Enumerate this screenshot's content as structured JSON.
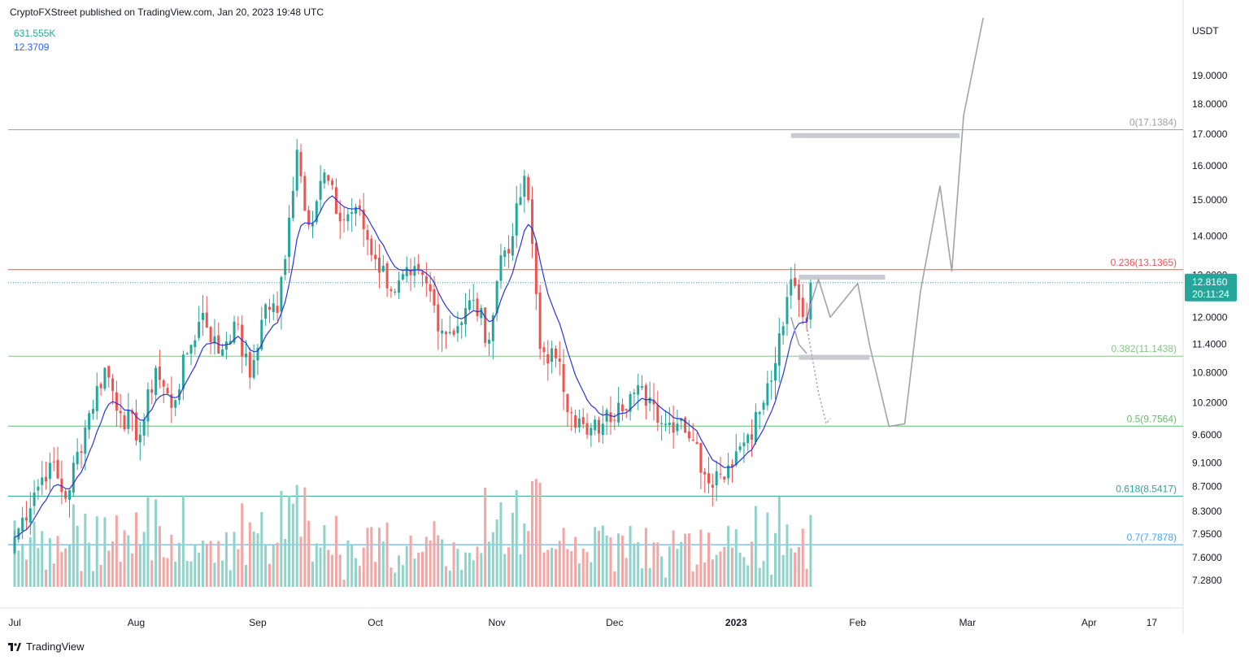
{
  "header": {
    "published": "CryptoFXStreet published on TradingView.com, Jan 20, 2023 19:48 UTC"
  },
  "legend": {
    "volume": "631.555K",
    "ma_value": "12.3709"
  },
  "footer": {
    "brand": "TradingView"
  },
  "colors": {
    "up": "#26a69a",
    "down": "#ef5350",
    "vol_up": "#8fd3ca",
    "vol_down": "#f4a6a4",
    "ma": "#2c35d4",
    "fib_0": "#9e9e9e",
    "fib_236": "#ef5350",
    "fib_382": "#81c784",
    "fib_500": "#66bb6a",
    "fib_618": "#26a69a",
    "fib_700": "#42a5f5",
    "last_price_bg": "#26a69a"
  },
  "chart_data": {
    "type": "candlestick",
    "symbol_quote": "USDT",
    "y_scale": "log",
    "ylim": [
      7.1,
      21.2
    ],
    "y_ticks": [
      "19.0000",
      "18.0000",
      "17.0000",
      "16.0000",
      "15.0000",
      "14.0000",
      "13.0000",
      "12.0000",
      "11.4000",
      "10.8000",
      "10.2000",
      "9.6000",
      "9.1000",
      "8.7000",
      "8.3000",
      "7.9500",
      "7.6000",
      "7.2800"
    ],
    "x_ticks": [
      "Jul",
      "Aug",
      "Sep",
      "Oct",
      "Nov",
      "Dec",
      "2023",
      "Feb",
      "Mar",
      "Apr",
      "17"
    ],
    "x_start": "2022-07-01",
    "x_end": "2023-04-25",
    "last_price": "12.8160",
    "countdown": "20:11:24",
    "fib_levels": [
      {
        "label": "0(17.1384)",
        "value": 17.1384,
        "level": "0"
      },
      {
        "label": "0.236(13.1365)",
        "value": 13.1365,
        "level": "0.236"
      },
      {
        "label": "0.382(11.1438)",
        "value": 11.1438,
        "level": "0.382"
      },
      {
        "label": "0.5(9.7564)",
        "value": 9.7564,
        "level": "0.5"
      },
      {
        "label": "0.618(8.5417)",
        "value": 8.5417,
        "level": "0.618"
      },
      {
        "label": "0.7(7.7878)",
        "value": 7.7878,
        "level": "0.7"
      }
    ],
    "close_anchors": [
      [
        "2022-07-01",
        7.9
      ],
      [
        "2022-07-06",
        8.6
      ],
      [
        "2022-07-10",
        9.1
      ],
      [
        "2022-07-14",
        8.5
      ],
      [
        "2022-07-20",
        10.0
      ],
      [
        "2022-07-24",
        10.9
      ],
      [
        "2022-07-28",
        10.0
      ],
      [
        "2022-08-02",
        9.6
      ],
      [
        "2022-08-06",
        10.9
      ],
      [
        "2022-08-10",
        10.1
      ],
      [
        "2022-08-14",
        11.2
      ],
      [
        "2022-08-18",
        12.1
      ],
      [
        "2022-08-22",
        11.2
      ],
      [
        "2022-08-26",
        11.9
      ],
      [
        "2022-08-30",
        10.7
      ],
      [
        "2022-09-03",
        12.3
      ],
      [
        "2022-09-06",
        12.1
      ],
      [
        "2022-09-09",
        14.5
      ],
      [
        "2022-09-11",
        16.5
      ],
      [
        "2022-09-14",
        14.3
      ],
      [
        "2022-09-18",
        15.8
      ],
      [
        "2022-09-22",
        14.4
      ],
      [
        "2022-09-26",
        14.8
      ],
      [
        "2022-10-01",
        13.4
      ],
      [
        "2022-10-06",
        12.6
      ],
      [
        "2022-10-10",
        13.0
      ],
      [
        "2022-10-14",
        12.8
      ],
      [
        "2022-10-18",
        11.7
      ],
      [
        "2022-10-22",
        11.8
      ],
      [
        "2022-10-26",
        12.4
      ],
      [
        "2022-10-30",
        11.5
      ],
      [
        "2022-11-02",
        13.5
      ],
      [
        "2022-11-05",
        14.0
      ],
      [
        "2022-11-08",
        15.7
      ],
      [
        "2022-11-10",
        13.8
      ],
      [
        "2022-11-12",
        11.3
      ],
      [
        "2022-11-16",
        11.1
      ],
      [
        "2022-11-20",
        10.0
      ],
      [
        "2022-11-24",
        9.6
      ],
      [
        "2022-11-28",
        9.8
      ],
      [
        "2022-12-02",
        10.2
      ],
      [
        "2022-12-06",
        10.4
      ],
      [
        "2022-12-10",
        10.3
      ],
      [
        "2022-12-14",
        9.8
      ],
      [
        "2022-12-18",
        9.9
      ],
      [
        "2022-12-21",
        9.5
      ],
      [
        "2022-12-24",
        8.9
      ],
      [
        "2022-12-28",
        8.9
      ],
      [
        "2023-01-01",
        9.3
      ],
      [
        "2023-01-04",
        9.6
      ],
      [
        "2023-01-08",
        10.2
      ],
      [
        "2023-01-11",
        11.0
      ],
      [
        "2023-01-13",
        11.8
      ],
      [
        "2023-01-15",
        12.9
      ],
      [
        "2023-01-17",
        12.4
      ],
      [
        "2023-01-19",
        11.9
      ],
      [
        "2023-01-20",
        12.816
      ]
    ],
    "ma_last": 12.3709,
    "volume_last": "631.555K",
    "drawings": [
      {
        "type": "resistance-zone",
        "from": "2023-01-15",
        "to": "2023-02-27",
        "value": 16.95
      },
      {
        "type": "resistance-zone",
        "from": "2023-01-17",
        "to": "2023-02-08",
        "value": 12.95
      },
      {
        "type": "support-zone",
        "from": "2023-01-17",
        "to": "2023-02-04",
        "value": 11.12
      }
    ]
  }
}
